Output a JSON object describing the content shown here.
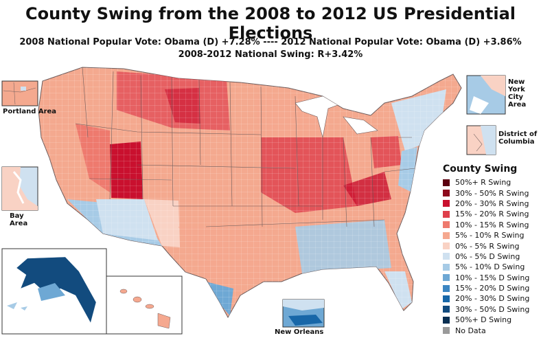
{
  "title": "County Swing from the 2008 to 2012 US Presidential Elections",
  "subtitle_line1": "2008 National Popular Vote: Obama (D) +7.28% ---- 2012 National Popular Vote: Obama (D) +3.86%",
  "subtitle_line2": "2008-2012 National Swing: R+3.42%",
  "insets": {
    "portland": "Portland Area",
    "bay": "Bay Area",
    "nyc": "New York City Area",
    "dc": "District of Columbia",
    "new_orleans": "New Orleans"
  },
  "legend": {
    "title": "County Swing",
    "items": [
      {
        "label": "50%+ R Swing",
        "color": "#5c0010"
      },
      {
        "label": "30% - 50% R Swing",
        "color": "#8e0a1c"
      },
      {
        "label": "20% - 30% R Swing",
        "color": "#c9102e"
      },
      {
        "label": "15% - 20% R Swing",
        "color": "#df3f4b"
      },
      {
        "label": "10% - 15% R Swing",
        "color": "#ee7a6e"
      },
      {
        "label": "5% - 10% R Swing",
        "color": "#f5a88f"
      },
      {
        "label": "0% - 5% R Swing",
        "color": "#f9d2c4"
      },
      {
        "label": "0% - 5% D Swing",
        "color": "#cfe1f0"
      },
      {
        "label": "5% - 10% D Swing",
        "color": "#a7cbe6"
      },
      {
        "label": "10% - 15% D Swing",
        "color": "#6ea8d4"
      },
      {
        "label": "15% - 20% D Swing",
        "color": "#3c86c2"
      },
      {
        "label": "20% - 30% D Swing",
        "color": "#1867a8"
      },
      {
        "label": "30% - 50% D Swing",
        "color": "#124b7e"
      },
      {
        "label": "50%+ D Swing",
        "color": "#0a2f52"
      },
      {
        "label": "No Data",
        "color": "#9a9a9a"
      }
    ]
  },
  "colors": {
    "state_border": "#6b5b5b",
    "base_r": "#f4a98f",
    "light_r": "#f8cdbd"
  }
}
